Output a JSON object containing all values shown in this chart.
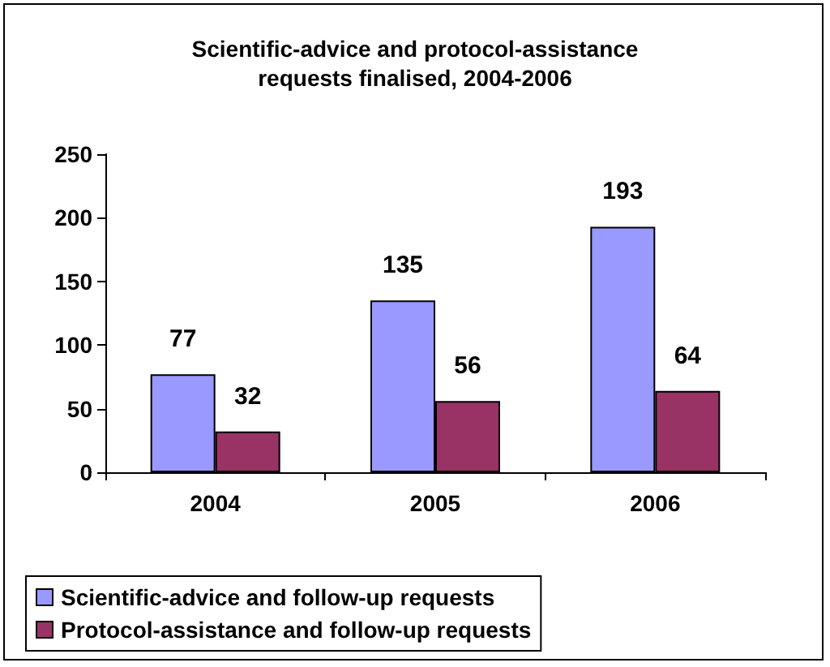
{
  "chart_data": {
    "type": "bar",
    "title": "Scientific-advice and protocol-assistance\nrequests finalised, 2004-2006",
    "categories": [
      "2004",
      "2005",
      "2006"
    ],
    "series": [
      {
        "name": "Scientific-advice and follow-up requests",
        "color": "#9999ff",
        "values": [
          77,
          135,
          193
        ]
      },
      {
        "name": "Protocol-assistance and follow-up requests",
        "color": "#993366",
        "values": [
          32,
          56,
          64
        ]
      }
    ],
    "ylim": [
      0,
      250
    ],
    "yticks": [
      0,
      50,
      100,
      150,
      200,
      250
    ],
    "grid": false,
    "legend": "bottom",
    "data_labels": true
  }
}
